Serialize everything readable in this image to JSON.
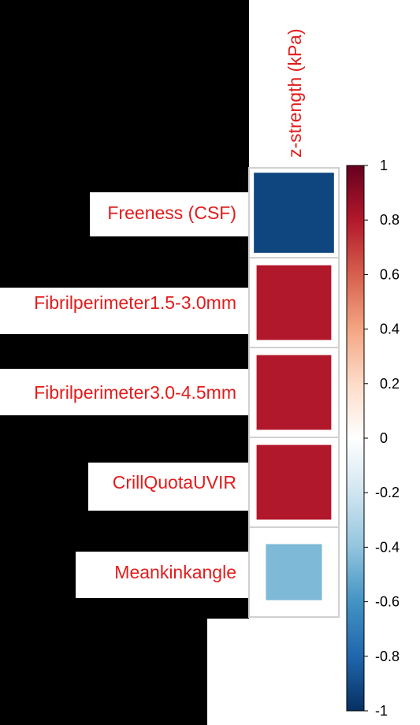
{
  "chart_data": {
    "type": "heatmap",
    "title": "",
    "columns": [
      "z-strength (kPa)"
    ],
    "rows": [
      "Freeness (CSF)",
      "Fibrilperimeter1.5-3.0mm",
      "Fibrilperimeter3.0-4.5mm",
      "CrillQuotaUVIR",
      "Meankinkangle"
    ],
    "values": [
      -0.92,
      0.8,
      0.8,
      0.8,
      -0.45
    ],
    "colorbar": {
      "range": [
        -1,
        1
      ],
      "ticks": [
        "1",
        "0.8",
        "0.6",
        "0.4",
        "0.2",
        "0",
        "-0.2",
        "-0.4",
        "-0.6",
        "-0.8",
        "-1"
      ],
      "colors": [
        "#67001f",
        "#b2182b",
        "#d6604d",
        "#f4a582",
        "#fddbc7",
        "#ffffff",
        "#d1e5f0",
        "#92c5de",
        "#4393c3",
        "#2166ac",
        "#053061"
      ]
    }
  }
}
